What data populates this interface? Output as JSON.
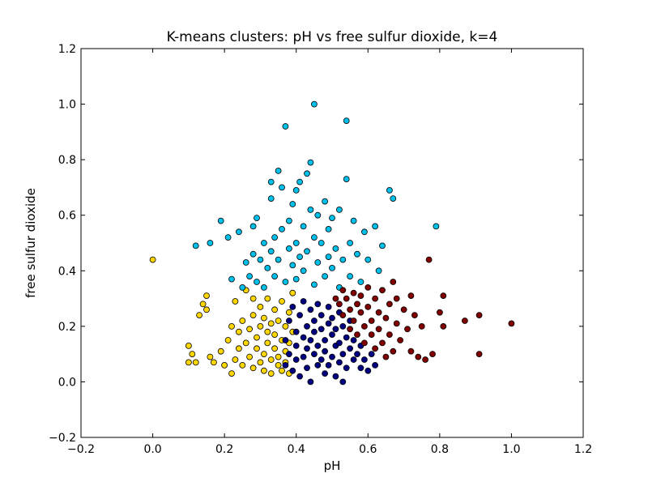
{
  "chart_data": {
    "type": "scatter",
    "title": "K-means clusters: pH vs free sulfur dioxide, k=4",
    "xlabel": "pH",
    "ylabel": "free sulfur dioxide",
    "xlim": [
      -0.2,
      1.2
    ],
    "ylim": [
      -0.2,
      1.2
    ],
    "xticks": [
      -0.2,
      0.0,
      0.2,
      0.4,
      0.6,
      0.8,
      1.0,
      1.2
    ],
    "yticks": [
      -0.2,
      0.0,
      0.2,
      0.4,
      0.6,
      0.8,
      1.0,
      1.2
    ],
    "xtick_labels": [
      "−0.2",
      "0.0",
      "0.2",
      "0.4",
      "0.6",
      "0.8",
      "1.0",
      "1.2"
    ],
    "ytick_labels": [
      "−0.2",
      "0.0",
      "0.2",
      "0.4",
      "0.6",
      "0.8",
      "1.0",
      "1.2"
    ],
    "grid": false,
    "legend": "none",
    "series": [
      {
        "color": "#ffd700",
        "points": [
          [
            0.0,
            0.44
          ],
          [
            0.1,
            0.07
          ],
          [
            0.1,
            0.13
          ],
          [
            0.11,
            0.1
          ],
          [
            0.12,
            0.07
          ],
          [
            0.13,
            0.24
          ],
          [
            0.14,
            0.28
          ],
          [
            0.15,
            0.31
          ],
          [
            0.15,
            0.26
          ],
          [
            0.16,
            0.09
          ],
          [
            0.17,
            0.07
          ],
          [
            0.19,
            0.11
          ],
          [
            0.2,
            0.06
          ],
          [
            0.21,
            0.15
          ],
          [
            0.22,
            0.2
          ],
          [
            0.22,
            0.03
          ],
          [
            0.23,
            0.29
          ],
          [
            0.23,
            0.08
          ],
          [
            0.24,
            0.18
          ],
          [
            0.24,
            0.12
          ],
          [
            0.25,
            0.22
          ],
          [
            0.25,
            0.06
          ],
          [
            0.26,
            0.14
          ],
          [
            0.26,
            0.33
          ],
          [
            0.27,
            0.19
          ],
          [
            0.27,
            0.09
          ],
          [
            0.28,
            0.3
          ],
          [
            0.28,
            0.24
          ],
          [
            0.28,
            0.05
          ],
          [
            0.29,
            0.16
          ],
          [
            0.29,
            0.12
          ],
          [
            0.3,
            0.2
          ],
          [
            0.3,
            0.07
          ],
          [
            0.3,
            0.27
          ],
          [
            0.31,
            0.1
          ],
          [
            0.31,
            0.23
          ],
          [
            0.31,
            0.04
          ],
          [
            0.32,
            0.18
          ],
          [
            0.32,
            0.3
          ],
          [
            0.32,
            0.14
          ],
          [
            0.33,
            0.08
          ],
          [
            0.33,
            0.21
          ],
          [
            0.33,
            0.03
          ],
          [
            0.34,
            0.26
          ],
          [
            0.34,
            0.12
          ],
          [
            0.34,
            0.17
          ],
          [
            0.35,
            0.06
          ],
          [
            0.35,
            0.22
          ],
          [
            0.35,
            0.09
          ],
          [
            0.36,
            0.15
          ],
          [
            0.36,
            0.29
          ],
          [
            0.36,
            0.04
          ],
          [
            0.37,
            0.2
          ],
          [
            0.37,
            0.11
          ],
          [
            0.37,
            0.07
          ],
          [
            0.38,
            0.25
          ],
          [
            0.38,
            0.14
          ],
          [
            0.38,
            0.03
          ],
          [
            0.39,
            0.18
          ],
          [
            0.39,
            0.32
          ]
        ]
      },
      {
        "color": "#00bfe8",
        "points": [
          [
            0.12,
            0.49
          ],
          [
            0.16,
            0.5
          ],
          [
            0.19,
            0.58
          ],
          [
            0.21,
            0.52
          ],
          [
            0.22,
            0.37
          ],
          [
            0.24,
            0.54
          ],
          [
            0.25,
            0.34
          ],
          [
            0.26,
            0.43
          ],
          [
            0.27,
            0.38
          ],
          [
            0.28,
            0.56
          ],
          [
            0.28,
            0.46
          ],
          [
            0.29,
            0.59
          ],
          [
            0.29,
            0.36
          ],
          [
            0.3,
            0.44
          ],
          [
            0.31,
            0.5
          ],
          [
            0.31,
            0.34
          ],
          [
            0.32,
            0.41
          ],
          [
            0.33,
            0.47
          ],
          [
            0.33,
            0.72
          ],
          [
            0.33,
            0.66
          ],
          [
            0.34,
            0.52
          ],
          [
            0.34,
            0.38
          ],
          [
            0.35,
            0.76
          ],
          [
            0.35,
            0.44
          ],
          [
            0.36,
            0.7
          ],
          [
            0.36,
            0.55
          ],
          [
            0.37,
            0.92
          ],
          [
            0.37,
            0.36
          ],
          [
            0.38,
            0.48
          ],
          [
            0.38,
            0.58
          ],
          [
            0.39,
            0.42
          ],
          [
            0.39,
            0.64
          ],
          [
            0.4,
            0.5
          ],
          [
            0.4,
            0.69
          ],
          [
            0.4,
            0.37
          ],
          [
            0.41,
            0.45
          ],
          [
            0.41,
            0.72
          ],
          [
            0.42,
            0.56
          ],
          [
            0.42,
            0.4
          ],
          [
            0.43,
            0.75
          ],
          [
            0.43,
            0.47
          ],
          [
            0.44,
            0.79
          ],
          [
            0.44,
            0.62
          ],
          [
            0.45,
            0.52
          ],
          [
            0.45,
            1.0
          ],
          [
            0.45,
            0.35
          ],
          [
            0.46,
            0.43
          ],
          [
            0.46,
            0.6
          ],
          [
            0.47,
            0.5
          ],
          [
            0.48,
            0.65
          ],
          [
            0.48,
            0.38
          ],
          [
            0.49,
            0.55
          ],
          [
            0.49,
            0.45
          ],
          [
            0.5,
            0.59
          ],
          [
            0.5,
            0.41
          ],
          [
            0.51,
            0.48
          ],
          [
            0.52,
            0.34
          ],
          [
            0.52,
            0.62
          ],
          [
            0.53,
            0.44
          ],
          [
            0.54,
            0.73
          ],
          [
            0.54,
            0.94
          ],
          [
            0.55,
            0.5
          ],
          [
            0.55,
            0.38
          ],
          [
            0.56,
            0.58
          ],
          [
            0.57,
            0.46
          ],
          [
            0.58,
            0.36
          ],
          [
            0.59,
            0.54
          ],
          [
            0.6,
            0.44
          ],
          [
            0.62,
            0.56
          ],
          [
            0.63,
            0.4
          ],
          [
            0.64,
            0.49
          ],
          [
            0.66,
            0.69
          ],
          [
            0.67,
            0.66
          ],
          [
            0.79,
            0.56
          ]
        ]
      },
      {
        "color": "#000080",
        "points": [
          [
            0.37,
            0.06
          ],
          [
            0.37,
            0.15
          ],
          [
            0.38,
            0.22
          ],
          [
            0.38,
            0.1
          ],
          [
            0.39,
            0.27
          ],
          [
            0.39,
            0.04
          ],
          [
            0.4,
            0.18
          ],
          [
            0.4,
            0.08
          ],
          [
            0.4,
            0.13
          ],
          [
            0.41,
            0.24
          ],
          [
            0.41,
            0.02
          ],
          [
            0.42,
            0.16
          ],
          [
            0.42,
            0.09
          ],
          [
            0.42,
            0.29
          ],
          [
            0.43,
            0.2
          ],
          [
            0.43,
            0.05
          ],
          [
            0.43,
            0.12
          ],
          [
            0.44,
            0.26
          ],
          [
            0.44,
            0.15
          ],
          [
            0.44,
            0.0
          ],
          [
            0.45,
            0.1
          ],
          [
            0.45,
            0.22
          ],
          [
            0.45,
            0.18
          ],
          [
            0.46,
            0.06
          ],
          [
            0.46,
            0.28
          ],
          [
            0.46,
            0.13
          ],
          [
            0.47,
            0.19
          ],
          [
            0.47,
            0.08
          ],
          [
            0.47,
            0.24
          ],
          [
            0.48,
            0.03
          ],
          [
            0.48,
            0.15
          ],
          [
            0.48,
            0.11
          ],
          [
            0.49,
            0.21
          ],
          [
            0.49,
            0.27
          ],
          [
            0.49,
            0.06
          ],
          [
            0.5,
            0.17
          ],
          [
            0.5,
            0.09
          ],
          [
            0.5,
            0.23
          ],
          [
            0.51,
            0.13
          ],
          [
            0.51,
            0.02
          ],
          [
            0.51,
            0.19
          ],
          [
            0.52,
            0.07
          ],
          [
            0.52,
            0.25
          ],
          [
            0.52,
            0.14
          ],
          [
            0.53,
            0.1
          ],
          [
            0.53,
            0.2
          ],
          [
            0.53,
            0.0
          ],
          [
            0.54,
            0.16
          ],
          [
            0.54,
            0.05
          ],
          [
            0.55,
            0.12
          ],
          [
            0.55,
            0.22
          ],
          [
            0.56,
            0.08
          ],
          [
            0.56,
            0.15
          ],
          [
            0.57,
            0.1
          ],
          [
            0.58,
            0.05
          ],
          [
            0.58,
            0.13
          ],
          [
            0.59,
            0.08
          ],
          [
            0.6,
            0.04
          ],
          [
            0.61,
            0.1
          ],
          [
            0.62,
            0.06
          ]
        ]
      },
      {
        "color": "#800000",
        "points": [
          [
            0.51,
            0.3
          ],
          [
            0.52,
            0.28
          ],
          [
            0.53,
            0.33
          ],
          [
            0.53,
            0.24
          ],
          [
            0.54,
            0.3
          ],
          [
            0.55,
            0.26
          ],
          [
            0.55,
            0.19
          ],
          [
            0.56,
            0.32
          ],
          [
            0.56,
            0.22
          ],
          [
            0.57,
            0.28
          ],
          [
            0.57,
            0.17
          ],
          [
            0.58,
            0.25
          ],
          [
            0.58,
            0.31
          ],
          [
            0.59,
            0.2
          ],
          [
            0.59,
            0.14
          ],
          [
            0.6,
            0.27
          ],
          [
            0.6,
            0.34
          ],
          [
            0.61,
            0.22
          ],
          [
            0.61,
            0.17
          ],
          [
            0.62,
            0.3
          ],
          [
            0.62,
            0.12
          ],
          [
            0.63,
            0.25
          ],
          [
            0.63,
            0.19
          ],
          [
            0.64,
            0.33
          ],
          [
            0.64,
            0.14
          ],
          [
            0.65,
            0.23
          ],
          [
            0.65,
            0.09
          ],
          [
            0.66,
            0.28
          ],
          [
            0.66,
            0.17
          ],
          [
            0.67,
            0.36
          ],
          [
            0.67,
            0.11
          ],
          [
            0.68,
            0.3
          ],
          [
            0.68,
            0.21
          ],
          [
            0.69,
            0.15
          ],
          [
            0.7,
            0.26
          ],
          [
            0.71,
            0.19
          ],
          [
            0.72,
            0.11
          ],
          [
            0.72,
            0.31
          ],
          [
            0.73,
            0.24
          ],
          [
            0.74,
            0.09
          ],
          [
            0.75,
            0.2
          ],
          [
            0.76,
            0.08
          ],
          [
            0.77,
            0.44
          ],
          [
            0.78,
            0.1
          ],
          [
            0.8,
            0.25
          ],
          [
            0.81,
            0.31
          ],
          [
            0.81,
            0.2
          ],
          [
            0.87,
            0.22
          ],
          [
            0.91,
            0.24
          ],
          [
            0.91,
            0.1
          ],
          [
            1.0,
            0.21
          ]
        ]
      }
    ]
  }
}
